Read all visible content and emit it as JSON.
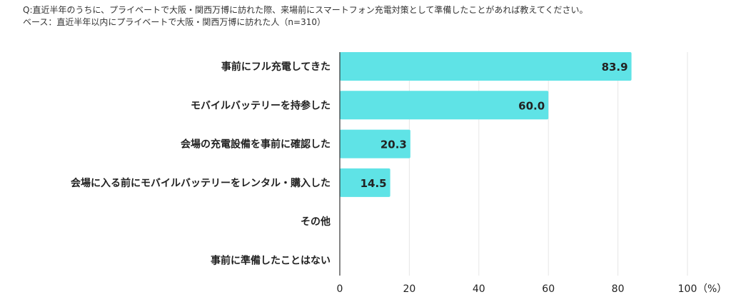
{
  "header": {
    "question": "Q:直近半年のうちに、プライベートで大阪・関西万博に訪れた際、来場前にスマートフォン充電対策として準備したことがあれば教えてください。",
    "base": "ベース：直近半年以内にプライベートで大阪・関西万博に訪れた人（n=310）"
  },
  "chart_data": {
    "type": "bar",
    "orientation": "horizontal",
    "categories": [
      "事前にフル充電してきた",
      "モバイルバッテリーを持参した",
      "会場の充電設備を事前に確認した",
      "会場に入る前にモバイルバッテリーをレンタル・購入した",
      "その他",
      "事前に準備したことはない"
    ],
    "values": [
      83.9,
      60.0,
      20.3,
      14.5,
      0,
      0
    ],
    "value_labels": [
      "83.9",
      "60.0",
      "20.3",
      "14.5",
      "",
      ""
    ],
    "xlim": [
      0,
      100
    ],
    "xticks": [
      0,
      20,
      40,
      60,
      80,
      100
    ],
    "xtick_labels": [
      "0",
      "20",
      "40",
      "60",
      "80",
      "100"
    ],
    "unit_label": "（%）",
    "grid": "vertical",
    "bar_color": "#5fe3e6",
    "grid_color": "#e6e6e6"
  }
}
